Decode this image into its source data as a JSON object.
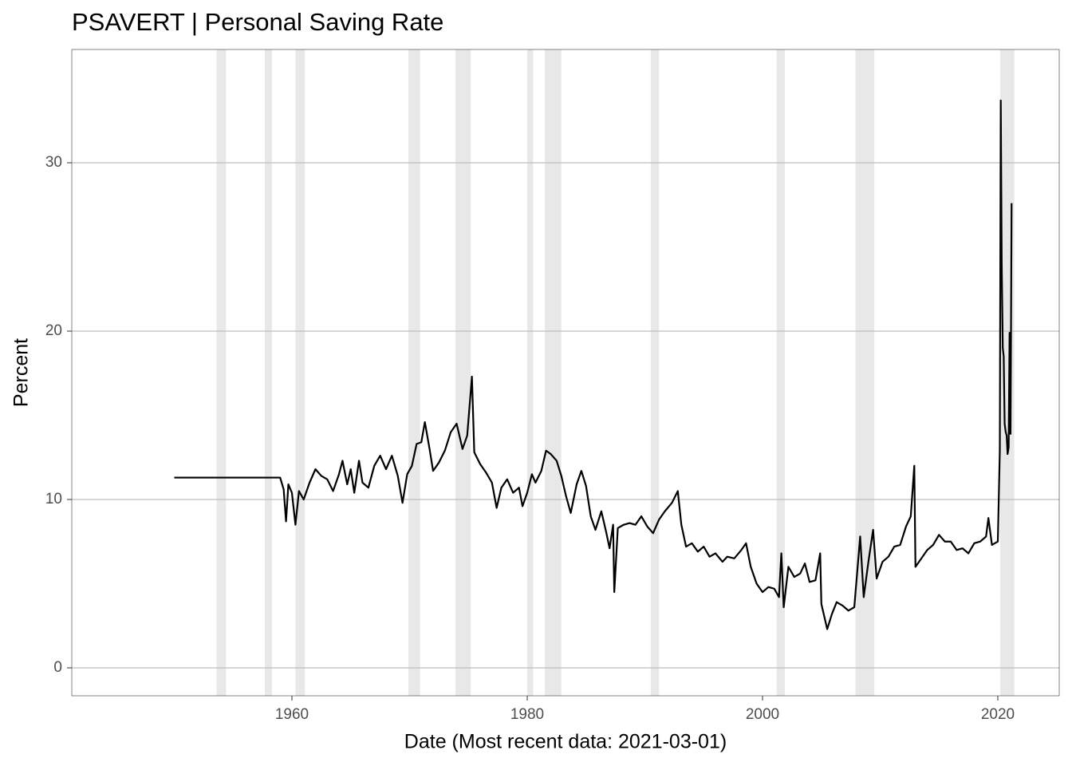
{
  "chart_data": {
    "type": "line",
    "title": "PSAVERT | Personal Saving Rate",
    "x_label": "Date (Most recent data: 2021-03-01)",
    "y_label": "Percent",
    "xlim": [
      1941.29,
      2025.22
    ],
    "ylim": [
      -1.66,
      36.73
    ],
    "xticks": [
      1960,
      1980,
      2000,
      2020
    ],
    "yticks": [
      0,
      10,
      20,
      30
    ],
    "grid": true,
    "color": "#000000",
    "recession_color": "#e8e8e8",
    "recessions": [
      [
        1953.6,
        1954.4
      ],
      [
        1957.7,
        1958.3
      ],
      [
        1960.3,
        1961.1
      ],
      [
        1969.9,
        1970.9
      ],
      [
        1973.9,
        1975.2
      ],
      [
        1980.0,
        1980.5
      ],
      [
        1981.5,
        1982.9
      ],
      [
        1990.5,
        1991.2
      ],
      [
        2001.2,
        2001.9
      ],
      [
        2007.9,
        2009.5
      ],
      [
        2020.2,
        2021.4
      ]
    ],
    "x": [
      1950,
      1959.0,
      1959.3,
      1959.5,
      1959.7,
      1960.0,
      1960.3,
      1960.6,
      1961.0,
      1961.5,
      1962.0,
      1962.5,
      1963.0,
      1963.5,
      1964.0,
      1964.3,
      1964.7,
      1965.0,
      1965.3,
      1965.7,
      1966.0,
      1966.5,
      1967.0,
      1967.5,
      1968.0,
      1968.5,
      1969.0,
      1969.4,
      1969.8,
      1970.2,
      1970.6,
      1971.0,
      1971.3,
      1971.7,
      1972.0,
      1972.5,
      1973.0,
      1973.5,
      1974.0,
      1974.5,
      1974.9,
      1975.3,
      1975.5,
      1976.0,
      1976.5,
      1977.0,
      1977.4,
      1977.8,
      1978.3,
      1978.8,
      1979.3,
      1979.6,
      1980.0,
      1980.4,
      1980.7,
      1981.2,
      1981.6,
      1982.0,
      1982.5,
      1982.9,
      1983.3,
      1983.7,
      1984.2,
      1984.6,
      1985.0,
      1985.4,
      1985.8,
      1986.3,
      1986.7,
      1987.0,
      1987.3,
      1987.4,
      1987.7,
      1988.2,
      1988.7,
      1989.2,
      1989.7,
      1990.2,
      1990.7,
      1991.2,
      1991.7,
      1992.3,
      1992.8,
      1993.1,
      1993.5,
      1994.0,
      1994.5,
      1995.0,
      1995.5,
      1996.0,
      1996.6,
      1997.0,
      1997.6,
      1998.2,
      1998.6,
      1999.0,
      1999.5,
      2000.0,
      2000.5,
      2001.0,
      2001.4,
      2001.6,
      2001.8,
      2002.2,
      2002.7,
      2003.2,
      2003.6,
      2004.0,
      2004.5,
      2004.9,
      2005.0,
      2005.5,
      2005.9,
      2006.3,
      2006.8,
      2007.3,
      2007.8,
      2008.3,
      2008.6,
      2009.0,
      2009.4,
      2009.7,
      2010.2,
      2010.7,
      2011.2,
      2011.7,
      2012.2,
      2012.6,
      2012.9,
      2013.0,
      2013.5,
      2014.0,
      2014.5,
      2015.0,
      2015.5,
      2016.0,
      2016.5,
      2017.0,
      2017.5,
      2018.0,
      2018.5,
      2019.0,
      2019.2,
      2019.5,
      2020.0,
      2020.17,
      2020.25,
      2020.33,
      2020.42,
      2020.5,
      2020.58,
      2020.67,
      2020.75,
      2020.83,
      2020.92,
      2021.0,
      2021.08,
      2021.17
    ],
    "values": [
      11.3,
      11.3,
      10.6,
      8.7,
      10.9,
      10.4,
      8.5,
      10.5,
      10.0,
      11.0,
      11.8,
      11.4,
      11.2,
      10.5,
      11.5,
      12.3,
      10.9,
      11.8,
      10.4,
      12.3,
      11.0,
      10.7,
      12.0,
      12.6,
      11.8,
      12.6,
      11.4,
      9.8,
      11.5,
      12.0,
      13.3,
      13.4,
      14.6,
      13.0,
      11.7,
      12.2,
      12.9,
      14.0,
      14.5,
      13.0,
      13.8,
      17.3,
      12.8,
      12.1,
      11.6,
      11.0,
      9.5,
      10.7,
      11.2,
      10.4,
      10.7,
      9.6,
      10.4,
      11.5,
      11.0,
      11.7,
      12.9,
      12.7,
      12.3,
      11.4,
      10.2,
      9.2,
      10.9,
      11.7,
      10.8,
      9.0,
      8.2,
      9.3,
      8.1,
      7.1,
      8.5,
      4.5,
      8.3,
      8.5,
      8.6,
      8.5,
      9.0,
      8.4,
      8.0,
      8.8,
      9.3,
      9.8,
      10.5,
      8.5,
      7.2,
      7.4,
      6.9,
      7.2,
      6.6,
      6.8,
      6.3,
      6.6,
      6.5,
      7.0,
      7.4,
      6.0,
      5.0,
      4.5,
      4.8,
      4.7,
      4.2,
      6.8,
      3.6,
      6.0,
      5.4,
      5.6,
      6.2,
      5.1,
      5.2,
      6.8,
      3.8,
      2.3,
      3.2,
      3.9,
      3.7,
      3.4,
      3.6,
      7.8,
      4.2,
      6.3,
      8.2,
      5.3,
      6.3,
      6.6,
      7.2,
      7.3,
      8.4,
      9.0,
      12.0,
      6.0,
      6.5,
      7.0,
      7.3,
      7.9,
      7.5,
      7.5,
      7.0,
      7.1,
      6.8,
      7.4,
      7.5,
      7.8,
      8.9,
      7.3,
      7.5,
      12.9,
      33.7,
      24.0,
      19.0,
      18.5,
      14.5,
      14.0,
      13.8,
      12.7,
      13.1,
      19.9,
      13.9,
      27.6
    ]
  }
}
